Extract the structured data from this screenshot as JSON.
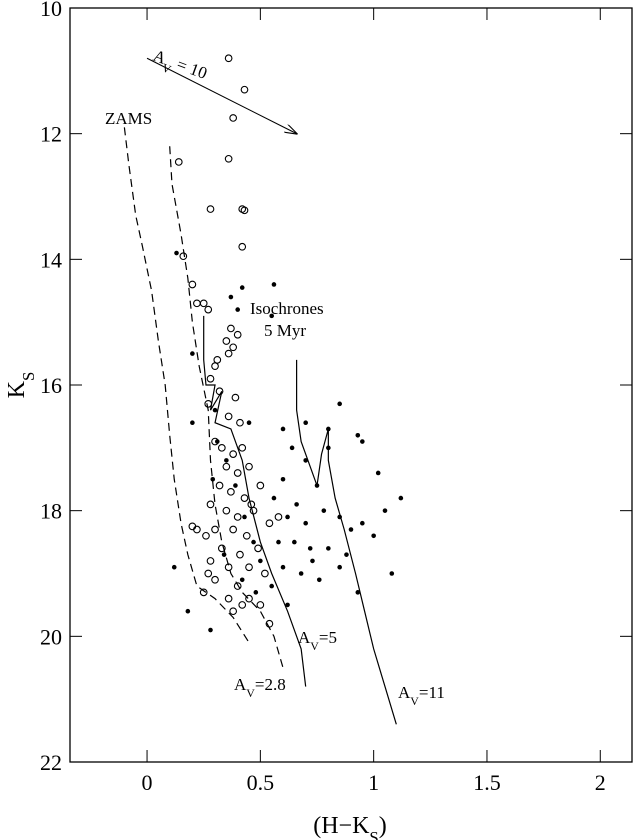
{
  "chart_data": {
    "type": "scatter",
    "xlabel": {
      "text": "(H−K",
      "sub": "S",
      "tail": ")"
    },
    "ylabel": {
      "text": "K",
      "sub": "S"
    },
    "xlim": [
      -0.34,
      2.14
    ],
    "ylim": [
      22,
      10
    ],
    "xticks": [
      0,
      0.5,
      1,
      1.5,
      2
    ],
    "yticks": [
      10,
      12,
      14,
      16,
      18,
      20,
      22
    ],
    "color": "#000000",
    "series": [
      {
        "marker": "open",
        "x": [
          0.36,
          0.43,
          0.38,
          0.36,
          0.14,
          0.28,
          0.42,
          0.43,
          0.42,
          0.16,
          0.2,
          0.22,
          0.25,
          0.27,
          0.37,
          0.4,
          0.35,
          0.38,
          0.31,
          0.3,
          0.36,
          0.28,
          0.32,
          0.27,
          0.39,
          0.36,
          0.41,
          0.3,
          0.33,
          0.38,
          0.42,
          0.35,
          0.4,
          0.45,
          0.32,
          0.37,
          0.43,
          0.5,
          0.28,
          0.35,
          0.4,
          0.47,
          0.54,
          0.3,
          0.26,
          0.38,
          0.44,
          0.22,
          0.33,
          0.41,
          0.49,
          0.28,
          0.36,
          0.45,
          0.52,
          0.3,
          0.4,
          0.27,
          0.36,
          0.45,
          0.5,
          0.42,
          0.38,
          0.54,
          0.2,
          0.25,
          0.58,
          0.46
        ],
        "y": [
          10.8,
          11.3,
          11.75,
          12.4,
          12.45,
          13.2,
          13.2,
          13.22,
          13.8,
          13.95,
          14.4,
          14.7,
          14.7,
          14.8,
          15.1,
          15.2,
          15.3,
          15.4,
          15.6,
          15.7,
          15.5,
          15.9,
          16.1,
          16.3,
          16.2,
          16.5,
          16.6,
          16.9,
          17.0,
          17.1,
          17.0,
          17.3,
          17.4,
          17.3,
          17.6,
          17.7,
          17.8,
          17.6,
          17.9,
          18.0,
          18.1,
          18.0,
          18.2,
          18.3,
          18.4,
          18.3,
          18.4,
          18.3,
          18.6,
          18.7,
          18.6,
          18.8,
          18.9,
          18.9,
          19.0,
          19.1,
          19.2,
          19.0,
          19.4,
          19.4,
          19.5,
          19.5,
          19.6,
          19.8,
          18.25,
          19.3,
          18.1,
          17.9
        ]
      },
      {
        "marker": "filled",
        "x": [
          0.42,
          0.37,
          0.4,
          0.56,
          0.55,
          0.13,
          0.2,
          0.3,
          0.45,
          0.6,
          0.7,
          0.8,
          0.85,
          0.93,
          0.95,
          0.8,
          1.02,
          1.05,
          1.12,
          0.64,
          0.7,
          0.6,
          0.75,
          0.66,
          0.62,
          0.7,
          0.78,
          0.85,
          0.9,
          0.95,
          1.0,
          0.58,
          0.65,
          0.72,
          0.8,
          0.88,
          0.6,
          0.68,
          0.76,
          0.85,
          0.93,
          0.55,
          0.62,
          0.12,
          0.18,
          0.28,
          0.5,
          0.47,
          0.43,
          0.39,
          0.35,
          0.31,
          0.29,
          0.34,
          0.42,
          0.48,
          0.2,
          0.56,
          0.73,
          1.08
        ],
        "y": [
          14.45,
          14.6,
          14.8,
          14.4,
          14.9,
          13.9,
          15.5,
          16.4,
          16.6,
          16.7,
          16.6,
          16.7,
          16.3,
          16.8,
          16.9,
          17.0,
          17.4,
          18.0,
          17.8,
          17.0,
          17.2,
          17.5,
          17.6,
          17.9,
          18.1,
          18.2,
          18.0,
          18.1,
          18.3,
          18.2,
          18.4,
          18.5,
          18.5,
          18.6,
          18.6,
          18.7,
          18.9,
          19.0,
          19.1,
          18.9,
          19.3,
          19.2,
          19.5,
          18.9,
          19.6,
          19.9,
          18.8,
          18.5,
          18.1,
          17.6,
          17.2,
          16.9,
          17.5,
          18.7,
          19.1,
          19.3,
          16.6,
          17.8,
          18.8,
          19.0
        ]
      },
      {
        "marker": "line",
        "dash": true,
        "x": [
          -0.1,
          -0.08,
          -0.05,
          -0.02,
          0.02,
          0.05,
          0.08,
          0.1,
          0.12,
          0.15,
          0.18,
          0.22,
          0.3,
          0.38,
          0.45
        ],
        "y": [
          11.9,
          12.5,
          13.3,
          13.8,
          14.5,
          15.3,
          16.0,
          16.8,
          17.5,
          18.2,
          18.7,
          19.2,
          19.4,
          19.7,
          20.1
        ]
      },
      {
        "marker": "line",
        "dash": true,
        "x": [
          0.1,
          0.11,
          0.15,
          0.18,
          0.2,
          0.23,
          0.27,
          0.28,
          0.3,
          0.33,
          0.37,
          0.42,
          0.5,
          0.56,
          0.6
        ],
        "y": [
          12.2,
          12.8,
          13.6,
          14.3,
          15.0,
          15.7,
          16.4,
          17.2,
          17.9,
          18.5,
          19.0,
          19.3,
          19.6,
          20.0,
          20.5
        ]
      },
      {
        "marker": "line",
        "dash": false,
        "x": [
          0.25,
          0.25,
          0.26,
          0.3,
          0.28,
          0.33,
          0.3,
          0.37,
          0.42,
          0.45,
          0.5,
          0.55,
          0.62,
          0.68,
          0.7
        ],
        "y": [
          14.9,
          15.6,
          16.0,
          16.0,
          16.4,
          16.1,
          16.6,
          16.7,
          17.2,
          17.8,
          18.5,
          19.0,
          19.6,
          20.2,
          20.8
        ]
      },
      {
        "marker": "line",
        "dash": false,
        "x": [
          0.66,
          0.66,
          0.68,
          0.72,
          0.75,
          0.77,
          0.8,
          0.8,
          0.83,
          0.87,
          0.92,
          0.96,
          1.0,
          1.05,
          1.1
        ],
        "y": [
          15.6,
          16.4,
          16.9,
          17.3,
          17.6,
          17.1,
          16.7,
          17.2,
          17.8,
          18.3,
          19.0,
          19.6,
          20.2,
          20.8,
          21.4
        ]
      }
    ],
    "arrow": {
      "x": [
        0,
        0.66
      ],
      "y": [
        10.8,
        12.0
      ],
      "label": {
        "text": "A",
        "sub": "V",
        "tail": " = 10"
      }
    },
    "annotations": [
      {
        "text": "ZAMS"
      },
      {
        "text": "Isochrones"
      },
      {
        "text": "5 Myr"
      },
      {
        "text": "A",
        "sub": "V",
        "tail": "=5"
      },
      {
        "text": "A",
        "sub": "V",
        "tail": "=2.8"
      },
      {
        "text": "A",
        "sub": "V",
        "tail": "=11"
      }
    ]
  }
}
